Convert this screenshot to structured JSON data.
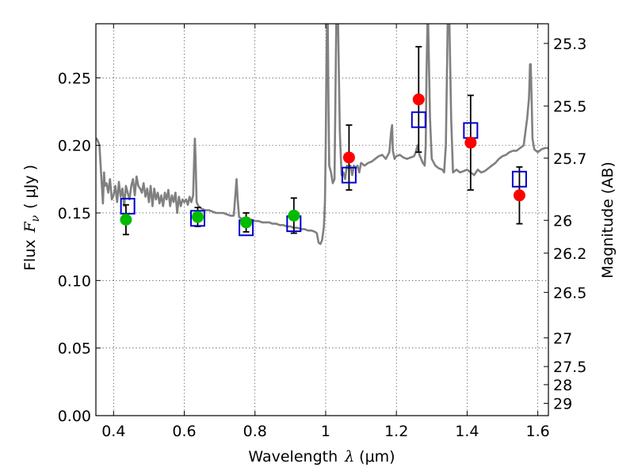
{
  "chart_data": {
    "type": "scatter",
    "xlabel_prefix": "Wavelength",
    "xlabel_symbol": "λ",
    "xlabel_unit": "(μm)",
    "ylabel_prefix": "Flux",
    "ylabel_symbol": "F",
    "ylabel_subscript": "ν",
    "ylabel_unit": "( μJy )",
    "y2label": "Magnitude (AB)",
    "xlim": [
      0.35,
      1.63
    ],
    "ylim": [
      0.0,
      0.29
    ],
    "x_ticks": [
      {
        "value": 0.4,
        "label": "0.4"
      },
      {
        "value": 0.6,
        "label": "0.6"
      },
      {
        "value": 0.8,
        "label": "0.8"
      },
      {
        "value": 1.0,
        "label": "1"
      },
      {
        "value": 1.2,
        "label": "1.2"
      },
      {
        "value": 1.4,
        "label": "1.4"
      },
      {
        "value": 1.6,
        "label": "1.6"
      }
    ],
    "y_ticks": [
      {
        "value": 0.0,
        "label": "0.00"
      },
      {
        "value": 0.05,
        "label": "0.05"
      },
      {
        "value": 0.1,
        "label": "0.10"
      },
      {
        "value": 0.15,
        "label": "0.15"
      },
      {
        "value": 0.2,
        "label": "0.20"
      },
      {
        "value": 0.25,
        "label": "0.25"
      }
    ],
    "y2_ticks": [
      {
        "value": 25.3,
        "label": "25.3"
      },
      {
        "value": 25.5,
        "label": "25.5"
      },
      {
        "value": 25.7,
        "label": "25.7"
      },
      {
        "value": 26.0,
        "label": "26"
      },
      {
        "value": 26.2,
        "label": "26.2"
      },
      {
        "value": 26.5,
        "label": "26.5"
      },
      {
        "value": 27.0,
        "label": "27"
      },
      {
        "value": 27.5,
        "label": "27.5"
      },
      {
        "value": 28.0,
        "label": "28"
      },
      {
        "value": 29.0,
        "label": "29"
      }
    ],
    "grid": true,
    "colors": {
      "model": "#808080",
      "optical": "#00bb00",
      "nir": "#ff0000",
      "squares": "#0000cc",
      "errorbars": "#000000"
    },
    "series": [
      {
        "name": "model spectrum",
        "style": "line",
        "x": [
          0.35,
          0.352,
          0.356,
          0.36,
          0.365,
          0.37,
          0.373,
          0.375,
          0.38,
          0.385,
          0.39,
          0.395,
          0.4,
          0.405,
          0.41,
          0.415,
          0.42,
          0.425,
          0.43,
          0.435,
          0.44,
          0.445,
          0.45,
          0.455,
          0.46,
          0.465,
          0.47,
          0.475,
          0.48,
          0.485,
          0.49,
          0.495,
          0.5,
          0.505,
          0.51,
          0.515,
          0.52,
          0.525,
          0.53,
          0.535,
          0.54,
          0.545,
          0.55,
          0.555,
          0.56,
          0.565,
          0.57,
          0.575,
          0.58,
          0.585,
          0.59,
          0.595,
          0.6,
          0.605,
          0.61,
          0.615,
          0.62,
          0.625,
          0.628,
          0.63,
          0.632,
          0.635,
          0.64,
          0.65,
          0.66,
          0.67,
          0.68,
          0.69,
          0.7,
          0.71,
          0.72,
          0.73,
          0.74,
          0.745,
          0.748,
          0.751,
          0.755,
          0.76,
          0.77,
          0.78,
          0.79,
          0.8,
          0.81,
          0.82,
          0.83,
          0.84,
          0.85,
          0.86,
          0.87,
          0.88,
          0.89,
          0.9,
          0.91,
          0.92,
          0.93,
          0.94,
          0.95,
          0.96,
          0.97,
          0.975,
          0.98,
          0.985,
          0.99,
          0.995,
          0.998,
          1.0,
          1.002,
          1.004,
          1.006,
          1.008,
          1.01,
          1.015,
          1.02,
          1.025,
          1.03,
          1.035,
          1.04,
          1.045,
          1.05,
          1.055,
          1.06,
          1.065,
          1.07,
          1.075,
          1.08,
          1.085,
          1.09,
          1.095,
          1.1,
          1.11,
          1.12,
          1.13,
          1.14,
          1.15,
          1.16,
          1.17,
          1.18,
          1.185,
          1.188,
          1.19,
          1.195,
          1.2,
          1.21,
          1.22,
          1.23,
          1.24,
          1.25,
          1.255,
          1.26,
          1.265,
          1.27,
          1.275,
          1.28,
          1.283,
          1.285,
          1.288,
          1.29,
          1.295,
          1.3,
          1.31,
          1.32,
          1.33,
          1.335,
          1.34,
          1.345,
          1.35,
          1.355,
          1.36,
          1.37,
          1.38,
          1.39,
          1.4,
          1.41,
          1.42,
          1.43,
          1.44,
          1.45,
          1.46,
          1.47,
          1.48,
          1.49,
          1.5,
          1.51,
          1.52,
          1.53,
          1.54,
          1.55,
          1.56,
          1.57,
          1.575,
          1.578,
          1.58,
          1.583,
          1.585,
          1.59,
          1.6,
          1.61,
          1.62,
          1.63
        ],
        "y": [
          0.205,
          0.205,
          0.203,
          0.2,
          0.178,
          0.157,
          0.18,
          0.17,
          0.172,
          0.165,
          0.175,
          0.16,
          0.163,
          0.17,
          0.158,
          0.173,
          0.162,
          0.168,
          0.155,
          0.17,
          0.165,
          0.16,
          0.17,
          0.175,
          0.163,
          0.177,
          0.17,
          0.168,
          0.165,
          0.172,
          0.162,
          0.168,
          0.158,
          0.17,
          0.155,
          0.168,
          0.16,
          0.165,
          0.157,
          0.163,
          0.155,
          0.165,
          0.16,
          0.167,
          0.155,
          0.163,
          0.158,
          0.165,
          0.15,
          0.162,
          0.155,
          0.16,
          0.158,
          0.16,
          0.156,
          0.162,
          0.158,
          0.163,
          0.19,
          0.205,
          0.19,
          0.158,
          0.155,
          0.153,
          0.152,
          0.152,
          0.151,
          0.15,
          0.15,
          0.15,
          0.149,
          0.148,
          0.148,
          0.165,
          0.175,
          0.16,
          0.147,
          0.146,
          0.146,
          0.145,
          0.145,
          0.144,
          0.144,
          0.143,
          0.143,
          0.143,
          0.142,
          0.142,
          0.141,
          0.141,
          0.14,
          0.14,
          0.139,
          0.139,
          0.138,
          0.138,
          0.137,
          0.137,
          0.136,
          0.135,
          0.128,
          0.127,
          0.13,
          0.14,
          0.16,
          0.2,
          0.26,
          0.29,
          0.29,
          0.23,
          0.185,
          0.18,
          0.172,
          0.175,
          0.29,
          0.29,
          0.21,
          0.178,
          0.18,
          0.175,
          0.185,
          0.183,
          0.185,
          0.178,
          0.185,
          0.183,
          0.185,
          0.18,
          0.187,
          0.185,
          0.187,
          0.188,
          0.19,
          0.192,
          0.193,
          0.19,
          0.195,
          0.21,
          0.215,
          0.196,
          0.19,
          0.192,
          0.193,
          0.191,
          0.19,
          0.191,
          0.192,
          0.195,
          0.2,
          0.193,
          0.19,
          0.187,
          0.185,
          0.2,
          0.25,
          0.29,
          0.29,
          0.22,
          0.19,
          0.185,
          0.183,
          0.182,
          0.18,
          0.2,
          0.29,
          0.29,
          0.22,
          0.18,
          0.182,
          0.18,
          0.181,
          0.182,
          0.18,
          0.178,
          0.182,
          0.18,
          0.181,
          0.183,
          0.185,
          0.187,
          0.19,
          0.192,
          0.193,
          0.195,
          0.196,
          0.196,
          0.198,
          0.2,
          0.22,
          0.235,
          0.26,
          0.26,
          0.23,
          0.205,
          0.197,
          0.195,
          0.197,
          0.198,
          0.198
        ]
      },
      {
        "name": "open squares",
        "style": "square",
        "x": [
          0.44,
          0.638,
          0.775,
          0.91,
          1.066,
          1.263,
          1.41,
          1.548
        ],
        "y": [
          0.155,
          0.146,
          0.139,
          0.142,
          0.178,
          0.219,
          0.211,
          0.175
        ]
      },
      {
        "name": "green points",
        "style": "circle",
        "x": [
          0.435,
          0.638,
          0.775,
          0.91
        ],
        "y": [
          0.145,
          0.147,
          0.143,
          0.148
        ],
        "yerr": [
          0.011,
          0.007,
          0.007,
          0.013
        ]
      },
      {
        "name": "red points",
        "style": "circle",
        "x": [
          1.066,
          1.263,
          1.41,
          1.548
        ],
        "y": [
          0.191,
          0.234,
          0.202,
          0.163
        ],
        "yerr": [
          0.024,
          0.039,
          0.035,
          0.021
        ]
      }
    ]
  }
}
